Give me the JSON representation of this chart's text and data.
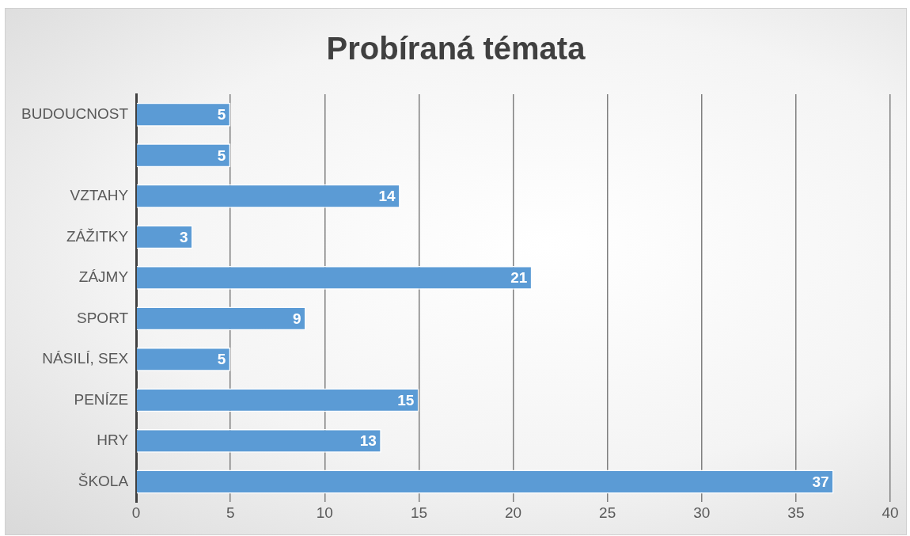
{
  "chart_data": {
    "type": "bar",
    "title": "Probíraná témata",
    "orientation": "horizontal",
    "categories": [
      "BUDOUCNOST",
      null,
      "VZTAHY",
      "ZÁŽITKY",
      "ZÁJMY",
      "SPORT",
      "NÁSILÍ, SEX",
      "PENÍZE",
      "HRY",
      "ŠKOLA"
    ],
    "values": [
      5,
      5,
      14,
      3,
      21,
      9,
      5,
      15,
      13,
      37
    ],
    "color": "#5b9bd5",
    "xlim": [
      0,
      40
    ],
    "xticks": [
      0,
      5,
      10,
      15,
      20,
      25,
      30,
      35,
      40
    ],
    "grid": "x",
    "data_labels": true,
    "legend": false
  }
}
